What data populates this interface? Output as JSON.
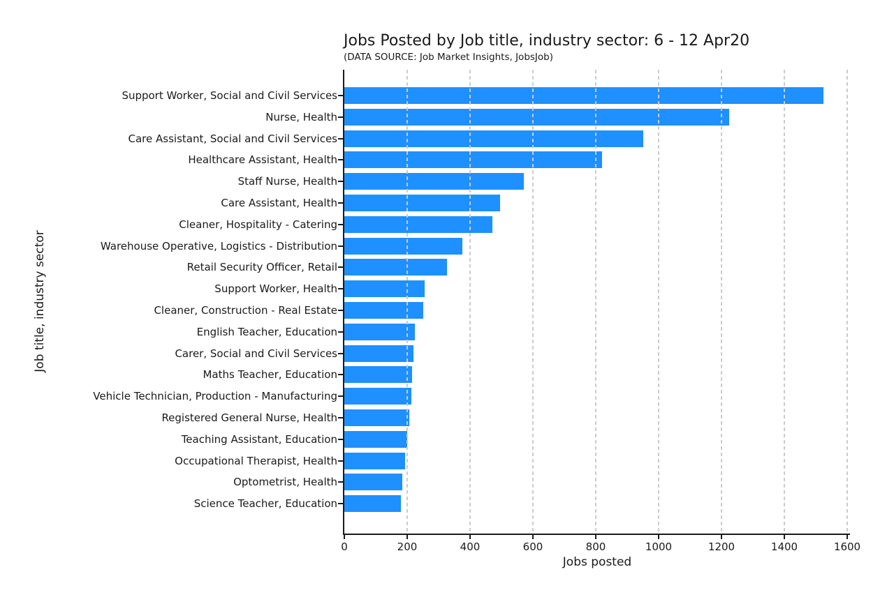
{
  "chart_data": {
    "type": "bar",
    "orientation": "horizontal",
    "title": "Jobs Posted by Job title, industry sector: 6 - 12 Apr20",
    "subtitle": "(DATA SOURCE: Job Market Insights, JobsJob)",
    "xlabel": "Jobs posted",
    "ylabel": "Job title, industry sector",
    "categories": [
      "Support Worker, Social and Civil Services",
      "Nurse, Health",
      "Care Assistant, Social and Civil Services",
      "Healthcare Assistant, Health",
      "Staff Nurse, Health",
      "Care Assistant, Health",
      "Cleaner, Hospitality - Catering",
      "Warehouse Operative, Logistics - Distribution",
      "Retail Security Officer, Retail",
      "Support Worker, Health",
      "Cleaner, Construction - Real Estate",
      "English Teacher, Education",
      "Carer, Social and Civil Services",
      "Maths Teacher, Education",
      "Vehicle Technician, Production - Manufacturing",
      "Registered General Nurse, Health",
      "Teaching Assistant, Education",
      "Occupational Therapist, Health",
      "Optometrist, Health",
      "Science Teacher, Education"
    ],
    "values": [
      1525,
      1225,
      950,
      820,
      570,
      495,
      470,
      375,
      327,
      255,
      250,
      225,
      221,
      215,
      213,
      206,
      201,
      193,
      184,
      180
    ],
    "xticks": [
      0,
      200,
      400,
      600,
      800,
      1000,
      1200,
      1400,
      1600
    ],
    "xlim": [
      0,
      1610
    ],
    "grid": "vertical-dashed",
    "legend": "none",
    "bar_color": "#1E90FF",
    "gridline_color": "#cbcbcb",
    "axis_color": "#1a1a1a"
  }
}
